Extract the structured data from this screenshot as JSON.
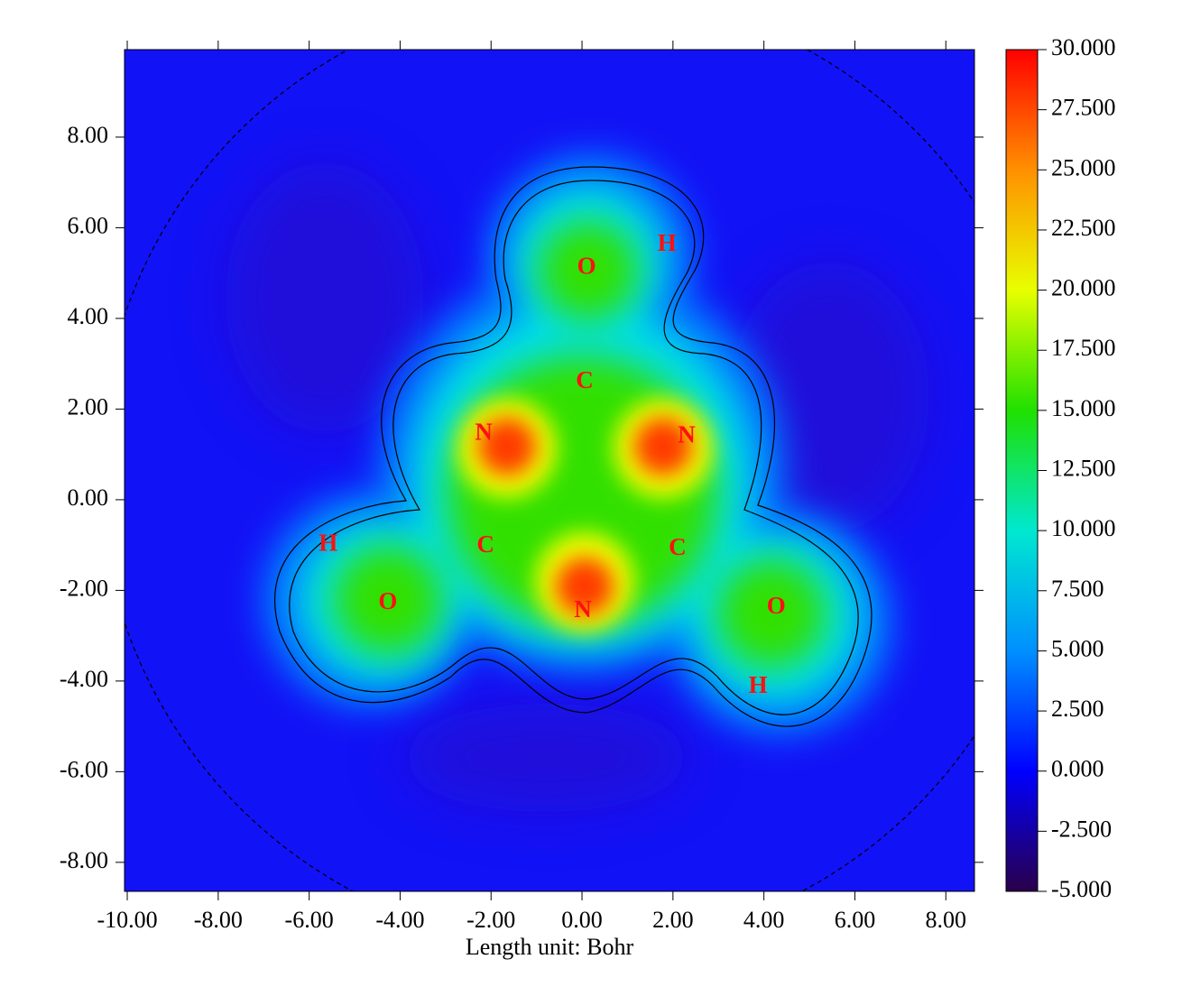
{
  "chart_data": {
    "type": "heatmap",
    "xlabel": "Length unit: Bohr",
    "xlim": [
      -10.06,
      8.63
    ],
    "xticks": [
      {
        "value": -10,
        "label": "-10.00"
      },
      {
        "value": -8,
        "label": "-8.00"
      },
      {
        "value": -6,
        "label": "-6.00"
      },
      {
        "value": -4,
        "label": "-4.00"
      },
      {
        "value": -2,
        "label": "-2.00"
      },
      {
        "value": 0,
        "label": "0.00"
      },
      {
        "value": 2,
        "label": "2.00"
      },
      {
        "value": 4,
        "label": "4.00"
      },
      {
        "value": 6,
        "label": "6.00"
      },
      {
        "value": 8,
        "label": "8.00"
      }
    ],
    "ylim": [
      -8.64,
      9.93
    ],
    "yticks": [
      {
        "value": -8,
        "label": "-8.00"
      },
      {
        "value": -6,
        "label": "-6.00"
      },
      {
        "value": -4,
        "label": "-4.00"
      },
      {
        "value": -2,
        "label": "-2.00"
      },
      {
        "value": 0,
        "label": "0.00"
      },
      {
        "value": 2,
        "label": "2.00"
      },
      {
        "value": 4,
        "label": "4.00"
      },
      {
        "value": 6,
        "label": "6.00"
      },
      {
        "value": 8,
        "label": "8.00"
      }
    ],
    "colorbar": {
      "lim": [
        -5,
        30
      ],
      "ticks": [
        {
          "value": 30,
          "label": "30.000"
        },
        {
          "value": 27.5,
          "label": "27.500"
        },
        {
          "value": 25,
          "label": "25.000"
        },
        {
          "value": 22.5,
          "label": "22.500"
        },
        {
          "value": 20,
          "label": "20.000"
        },
        {
          "value": 17.5,
          "label": "17.500"
        },
        {
          "value": 15,
          "label": "15.000"
        },
        {
          "value": 12.5,
          "label": "12.500"
        },
        {
          "value": 10,
          "label": "10.000"
        },
        {
          "value": 7.5,
          "label": "7.500"
        },
        {
          "value": 5,
          "label": "5.000"
        },
        {
          "value": 2.5,
          "label": "2.500"
        },
        {
          "value": 0,
          "label": "0.000"
        },
        {
          "value": -2.5,
          "label": "-2.500"
        },
        {
          "value": -5,
          "label": "-5.000"
        }
      ],
      "colors": [
        "#2a004a",
        "#0000ff",
        "#0090ff",
        "#00e8d0",
        "#20e000",
        "#e8ff00",
        "#ff9000",
        "#ff0000"
      ]
    },
    "atoms": [
      {
        "label": "O",
        "x": 0.1,
        "y": 5.11
      },
      {
        "label": "H",
        "x": 1.87,
        "y": 5.61
      },
      {
        "label": "C",
        "x": 0.06,
        "y": 2.59
      },
      {
        "label": "N",
        "x": -2.16,
        "y": 1.45
      },
      {
        "label": "N",
        "x": 2.3,
        "y": 1.39
      },
      {
        "label": "C",
        "x": -2.12,
        "y": -1.03
      },
      {
        "label": "C",
        "x": 2.1,
        "y": -1.09
      },
      {
        "label": "N",
        "x": 0.02,
        "y": -2.47
      },
      {
        "label": "H",
        "x": -5.58,
        "y": -1.0
      },
      {
        "label": "O",
        "x": -4.27,
        "y": -2.29
      },
      {
        "label": "O",
        "x": 4.27,
        "y": -2.39
      },
      {
        "label": "H",
        "x": 3.87,
        "y": -4.14
      }
    ]
  }
}
